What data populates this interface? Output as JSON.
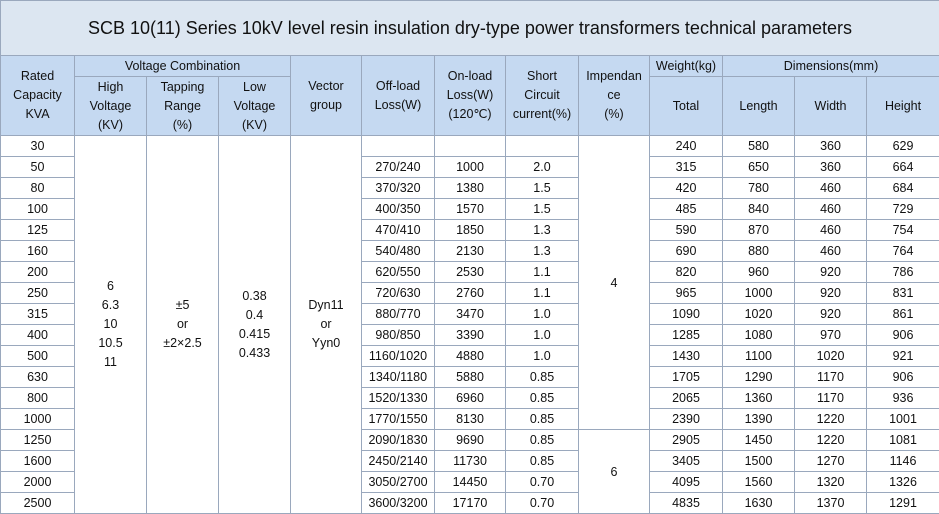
{
  "title": "SCB 10(11) Series 10kV level resin insulation dry-type power transformers technical parameters",
  "header": {
    "rated": [
      "Rated",
      "Capacity",
      "KVA"
    ],
    "voltage_combination": "Voltage Combination",
    "high": [
      "High",
      "Voltage",
      "(KV)"
    ],
    "tapping": [
      "Tapping",
      "Range",
      "(%)"
    ],
    "low": [
      "Low",
      "Voltage",
      "(KV)"
    ],
    "vector": [
      "Vector",
      "group"
    ],
    "off_load": [
      "Off-load",
      "Loss(W)"
    ],
    "on_load": [
      "On-load",
      "Loss(W)",
      "(120℃)"
    ],
    "short_circuit": [
      "Short",
      "Circuit",
      "current(%)"
    ],
    "impedance": [
      "Impendan",
      "ce",
      "(%)"
    ],
    "weight": "Weight(kg)",
    "total": "Total",
    "dimensions": "Dimensions(mm)",
    "length": "Length",
    "width": "Width",
    "height": "Height"
  },
  "high_voltage": [
    "6",
    "6.3",
    "10",
    "10.5",
    "11"
  ],
  "tapping_range": [
    "±5",
    "or",
    "±2×2.5"
  ],
  "low_voltage": [
    "0.38",
    "0.4",
    "0.415",
    "0.433"
  ],
  "vector_group": [
    "Dyn11",
    "or",
    "Yyn0"
  ],
  "impedance": [
    "4",
    "6"
  ],
  "rows": [
    [
      "30",
      null,
      null,
      null,
      "240",
      "580",
      "360",
      "629"
    ],
    [
      "50",
      "270/240",
      "1000",
      "2.0",
      "315",
      "650",
      "360",
      "664"
    ],
    [
      "80",
      "370/320",
      "1380",
      "1.5",
      "420",
      "780",
      "460",
      "684"
    ],
    [
      "100",
      "400/350",
      "1570",
      "1.5",
      "485",
      "840",
      "460",
      "729"
    ],
    [
      "125",
      "470/410",
      "1850",
      "1.3",
      "590",
      "870",
      "460",
      "754"
    ],
    [
      "160",
      "540/480",
      "2130",
      "1.3",
      "690",
      "880",
      "460",
      "764"
    ],
    [
      "200",
      "620/550",
      "2530",
      "1.1",
      "820",
      "960",
      "920",
      "786"
    ],
    [
      "250",
      "720/630",
      "2760",
      "1.1",
      "965",
      "1000",
      "920",
      "831"
    ],
    [
      "315",
      "880/770",
      "3470",
      "1.0",
      "1090",
      "1020",
      "920",
      "861"
    ],
    [
      "400",
      "980/850",
      "3390",
      "1.0",
      "1285",
      "1080",
      "970",
      "906"
    ],
    [
      "500",
      "1160/1020",
      "4880",
      "1.0",
      "1430",
      "1100",
      "1020",
      "921"
    ],
    [
      "630",
      "1340/1180",
      "5880",
      "0.85",
      "1705",
      "1290",
      "1170",
      "906"
    ],
    [
      "800",
      "1520/1330",
      "6960",
      "0.85",
      "2065",
      "1360",
      "1170",
      "936"
    ],
    [
      "1000",
      "1770/1550",
      "8130",
      "0.85",
      "2390",
      "1390",
      "1220",
      "1001"
    ],
    [
      "1250",
      "2090/1830",
      "9690",
      "0.85",
      "2905",
      "1450",
      "1220",
      "1081"
    ],
    [
      "1600",
      "2450/2140",
      "11730",
      "0.85",
      "3405",
      "1500",
      "1270",
      "1146"
    ],
    [
      "2000",
      "3050/2700",
      "14450",
      "0.70",
      "4095",
      "1560",
      "1320",
      "1326"
    ],
    [
      "2500",
      "3600/3200",
      "17170",
      "0.70",
      "4835",
      "1630",
      "1370",
      "1291"
    ]
  ]
}
